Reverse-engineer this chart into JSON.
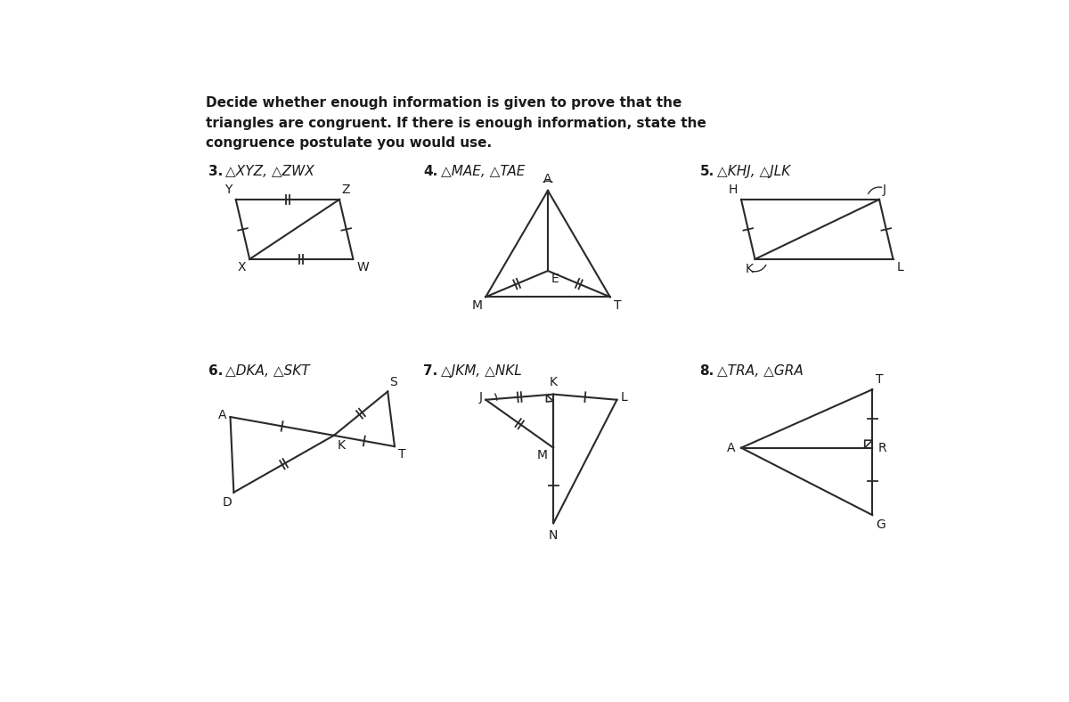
{
  "title_text": "Decide whether enough information is given to prove that the\ntriangles are congruent. If there is enough information, state the\ncongruence postulate you would use.",
  "bg_color": "#ffffff",
  "line_color": "#2a2a2a",
  "text_color": "#1a1a1a",
  "problems": [
    {
      "num": "3.",
      "label": "△XYZ, △ZWX"
    },
    {
      "num": "4.",
      "label": "△MAE, △TAE"
    },
    {
      "num": "5.",
      "label": "△KHJ, △JLK"
    },
    {
      "num": "6.",
      "label": "△DKA, △SKT"
    },
    {
      "num": "7.",
      "label": "△JKM, △NKL"
    },
    {
      "num": "8.",
      "label": "△TRA, △GRA"
    }
  ]
}
